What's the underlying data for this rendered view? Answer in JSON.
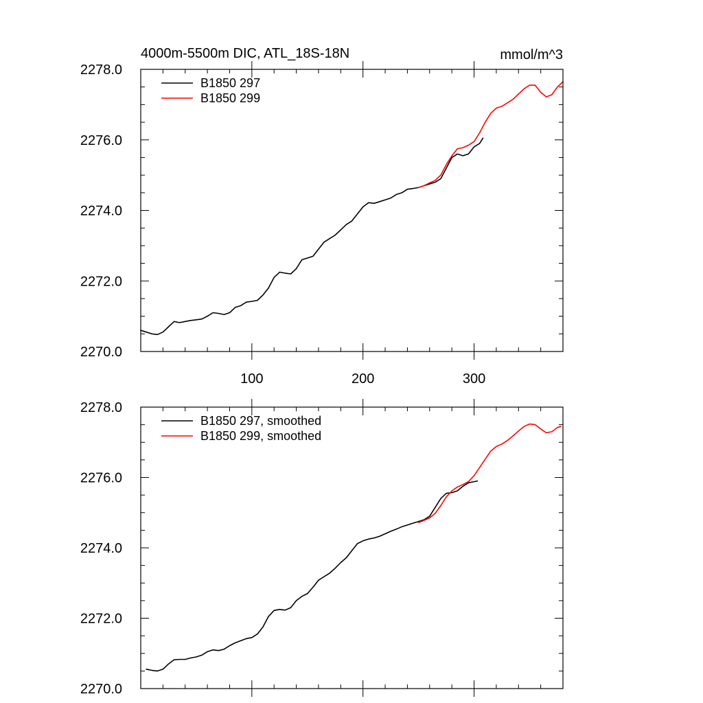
{
  "chart_data": [
    {
      "type": "line",
      "title": "4000m-5500m DIC, ATL_18S-18N",
      "units": "mmol/m^3",
      "xlabel": "",
      "ylabel": "",
      "xlim": [
        0,
        380
      ],
      "ylim": [
        2270.0,
        2278.0
      ],
      "x_ticks": [
        100,
        200,
        300
      ],
      "x_tick_labels": [
        "100",
        "200",
        "300"
      ],
      "y_ticks": [
        2270.0,
        2272.0,
        2274.0,
        2276.0,
        2278.0
      ],
      "y_tick_labels": [
        "2270.0",
        "2272.0",
        "2274.0",
        "2276.0",
        "2278.0"
      ],
      "legend_position": "top-left",
      "series": [
        {
          "name": "B1850 297",
          "color": "#000000",
          "x": [
            0,
            5,
            10,
            15,
            20,
            25,
            30,
            35,
            40,
            45,
            50,
            55,
            60,
            65,
            70,
            75,
            80,
            85,
            90,
            95,
            100,
            105,
            110,
            115,
            120,
            125,
            130,
            135,
            140,
            145,
            150,
            155,
            160,
            165,
            170,
            175,
            180,
            185,
            190,
            195,
            200,
            205,
            210,
            215,
            220,
            225,
            230,
            235,
            240,
            245,
            250,
            255,
            260,
            265,
            270,
            275,
            280,
            285,
            290,
            295,
            300,
            305,
            308
          ],
          "values": [
            2270.6,
            2270.55,
            2270.5,
            2270.48,
            2270.55,
            2270.7,
            2270.85,
            2270.82,
            2270.85,
            2270.88,
            2270.9,
            2270.92,
            2271.0,
            2271.1,
            2271.08,
            2271.05,
            2271.1,
            2271.25,
            2271.3,
            2271.4,
            2271.42,
            2271.45,
            2271.6,
            2271.8,
            2272.1,
            2272.25,
            2272.22,
            2272.2,
            2272.35,
            2272.6,
            2272.65,
            2272.7,
            2272.9,
            2273.1,
            2273.2,
            2273.3,
            2273.45,
            2273.6,
            2273.7,
            2273.9,
            2274.1,
            2274.22,
            2274.2,
            2274.25,
            2274.3,
            2274.35,
            2274.45,
            2274.5,
            2274.6,
            2274.62,
            2274.65,
            2274.7,
            2274.75,
            2274.8,
            2274.9,
            2275.2,
            2275.5,
            2275.6,
            2275.55,
            2275.6,
            2275.8,
            2275.9,
            2276.05
          ]
        },
        {
          "name": "B1850 299",
          "color": "#ff0000",
          "x": [
            250,
            255,
            260,
            265,
            270,
            275,
            280,
            285,
            290,
            295,
            300,
            305,
            310,
            315,
            320,
            325,
            330,
            335,
            340,
            345,
            350,
            355,
            360,
            365,
            370,
            375,
            380
          ],
          "values": [
            2274.65,
            2274.7,
            2274.78,
            2274.85,
            2275.0,
            2275.3,
            2275.55,
            2275.75,
            2275.78,
            2275.85,
            2275.95,
            2276.2,
            2276.5,
            2276.75,
            2276.9,
            2276.95,
            2277.05,
            2277.15,
            2277.3,
            2277.45,
            2277.55,
            2277.55,
            2277.35,
            2277.22,
            2277.28,
            2277.5,
            2277.65
          ]
        }
      ]
    },
    {
      "type": "line",
      "title": "",
      "xlabel": "",
      "ylabel": "",
      "xlim": [
        0,
        380
      ],
      "ylim": [
        2270.0,
        2278.0
      ],
      "x_ticks": [
        100,
        200,
        300
      ],
      "x_tick_labels": [],
      "y_ticks": [
        2270.0,
        2272.0,
        2274.0,
        2276.0,
        2278.0
      ],
      "y_tick_labels": [
        "2270.0",
        "2272.0",
        "2274.0",
        "2276.0",
        "2278.0"
      ],
      "legend_position": "top-left",
      "series": [
        {
          "name": "B1850 297, smoothed",
          "color": "#000000",
          "x": [
            5,
            10,
            15,
            20,
            25,
            30,
            35,
            40,
            45,
            50,
            55,
            60,
            65,
            70,
            75,
            80,
            85,
            90,
            95,
            100,
            105,
            110,
            115,
            120,
            125,
            130,
            135,
            140,
            145,
            150,
            155,
            160,
            165,
            170,
            175,
            180,
            185,
            190,
            195,
            200,
            205,
            210,
            215,
            220,
            225,
            230,
            235,
            240,
            245,
            250,
            255,
            260,
            265,
            270,
            275,
            280,
            285,
            290,
            295,
            300,
            303
          ],
          "values": [
            2270.55,
            2270.52,
            2270.5,
            2270.55,
            2270.7,
            2270.82,
            2270.83,
            2270.83,
            2270.87,
            2270.9,
            2270.95,
            2271.05,
            2271.1,
            2271.08,
            2271.12,
            2271.22,
            2271.3,
            2271.36,
            2271.42,
            2271.45,
            2271.55,
            2271.75,
            2272.05,
            2272.22,
            2272.25,
            2272.23,
            2272.3,
            2272.5,
            2272.62,
            2272.7,
            2272.88,
            2273.08,
            2273.18,
            2273.28,
            2273.42,
            2273.58,
            2273.72,
            2273.92,
            2274.12,
            2274.2,
            2274.25,
            2274.28,
            2274.33,
            2274.4,
            2274.47,
            2274.53,
            2274.6,
            2274.65,
            2274.7,
            2274.75,
            2274.8,
            2274.9,
            2275.15,
            2275.4,
            2275.55,
            2275.57,
            2275.62,
            2275.75,
            2275.85,
            2275.88,
            2275.9
          ]
        },
        {
          "name": "B1850 299, smoothed",
          "color": "#ff0000",
          "x": [
            250,
            255,
            260,
            265,
            270,
            275,
            280,
            285,
            290,
            295,
            300,
            305,
            310,
            315,
            320,
            325,
            330,
            335,
            340,
            345,
            350,
            355,
            360,
            365,
            370,
            375,
            378
          ],
          "values": [
            2274.72,
            2274.78,
            2274.85,
            2274.98,
            2275.2,
            2275.45,
            2275.62,
            2275.73,
            2275.8,
            2275.88,
            2276.05,
            2276.28,
            2276.52,
            2276.75,
            2276.88,
            2276.95,
            2277.05,
            2277.18,
            2277.32,
            2277.45,
            2277.52,
            2277.5,
            2277.38,
            2277.27,
            2277.3,
            2277.42,
            2277.45
          ]
        }
      ]
    }
  ]
}
